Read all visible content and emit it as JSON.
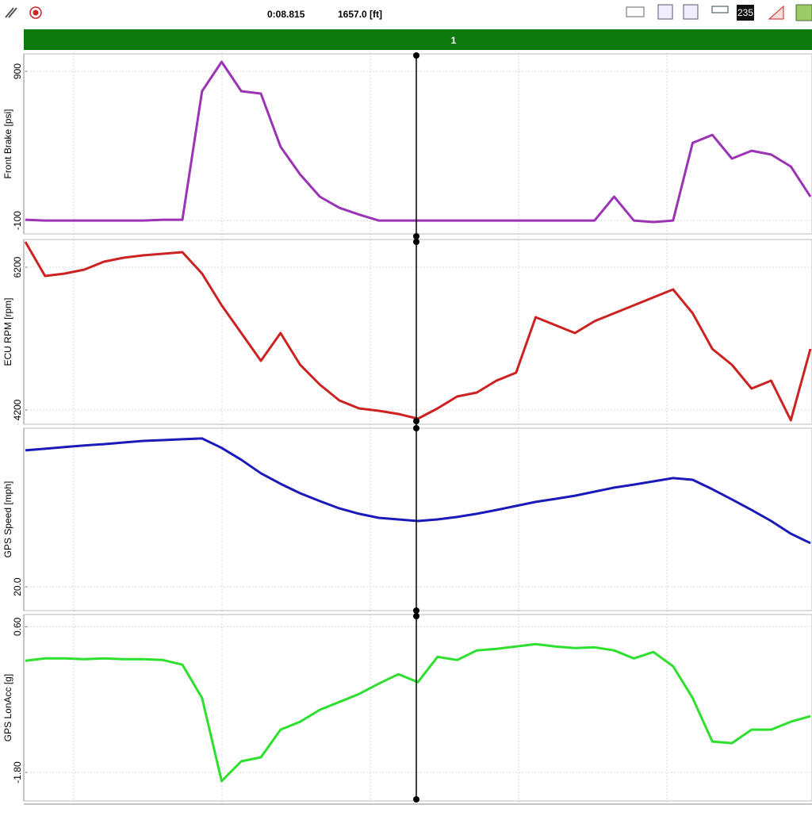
{
  "header": {
    "time": "0:08.815",
    "distance": "1657.0 [ft]",
    "icon_label": "235"
  },
  "lap": "1",
  "chart_data": [
    {
      "type": "line",
      "ylabel": "Front Brake [psi]",
      "color": "#9a34b4",
      "values": [
        -95,
        -100,
        -100,
        -100,
        -100,
        -100,
        -100,
        -95,
        -95,
        767,
        964,
        767,
        751,
        395,
        209,
        60,
        -15,
        -60,
        -100,
        -100,
        -100,
        -100,
        -100,
        -100,
        -100,
        -100,
        -100,
        -100,
        -100,
        -100,
        60,
        -100,
        -110,
        -100,
        421,
        474,
        315,
        368,
        342,
        262,
        60
      ],
      "ylim": [
        -190,
        1017
      ],
      "yticks": [
        -100,
        900
      ],
      "grid": true
    },
    {
      "type": "line",
      "ylabel": "ECU RPM [rpm]",
      "color": "#cc2222",
      "values": [
        6556,
        6078,
        6111,
        6167,
        6278,
        6333,
        6367,
        6389,
        6411,
        6111,
        5667,
        5278,
        4889,
        5278,
        4833,
        4556,
        4333,
        4222,
        4189,
        4144,
        4078,
        4222,
        4389,
        4444,
        4611,
        4722,
        5500,
        5389,
        5278,
        5444,
        5556,
        5667,
        5778,
        5889,
        5556,
        5056,
        4833,
        4500,
        4611,
        4056,
        5056
      ],
      "ylim": [
        4000,
        6589
      ],
      "yticks": [
        4200,
        6200
      ],
      "grid": true
    },
    {
      "type": "line",
      "ylabel": "GPS Speed [mph]",
      "color": "#1a1ab8",
      "values": [
        70.6,
        71.2,
        71.8,
        72.4,
        72.9,
        73.5,
        74.1,
        74.4,
        74.7,
        75.0,
        71.5,
        67.1,
        62.1,
        58.2,
        54.7,
        51.8,
        49.1,
        47.1,
        45.6,
        45.0,
        44.4,
        45.0,
        45.9,
        47.1,
        48.5,
        50.0,
        51.5,
        52.6,
        53.8,
        55.3,
        56.8,
        57.9,
        59.1,
        60.3,
        59.7,
        56.2,
        52.4,
        48.5,
        44.4,
        39.7,
        36.2
      ],
      "ylim": [
        11.2,
        78.8
      ],
      "yticks": [
        {
          "value": 20,
          "label": "20.0"
        }
      ],
      "grid": true
    },
    {
      "type": "line",
      "ylabel": "GPS LonAcc [g]",
      "color": "#2ee02e",
      "values": [
        0.039,
        0.078,
        0.078,
        0.065,
        0.078,
        0.065,
        0.065,
        0.052,
        -0.026,
        -0.574,
        -1.943,
        -1.617,
        -1.552,
        -1.095,
        -0.965,
        -0.769,
        -0.639,
        -0.508,
        -0.339,
        -0.182,
        -0.313,
        0.104,
        0.052,
        0.209,
        0.235,
        0.274,
        0.313,
        0.274,
        0.248,
        0.261,
        0.209,
        0.078,
        0.183,
        -0.052,
        -0.574,
        -1.291,
        -1.317,
        -1.095,
        -1.095,
        -0.965,
        -0.874
      ],
      "ylim": [
        -2.27,
        0.8
      ],
      "yticks": [
        {
          "value": -1.8,
          "label": "-1.80"
        },
        {
          "value": 0.6,
          "label": "0.60"
        }
      ],
      "grid": true
    }
  ]
}
